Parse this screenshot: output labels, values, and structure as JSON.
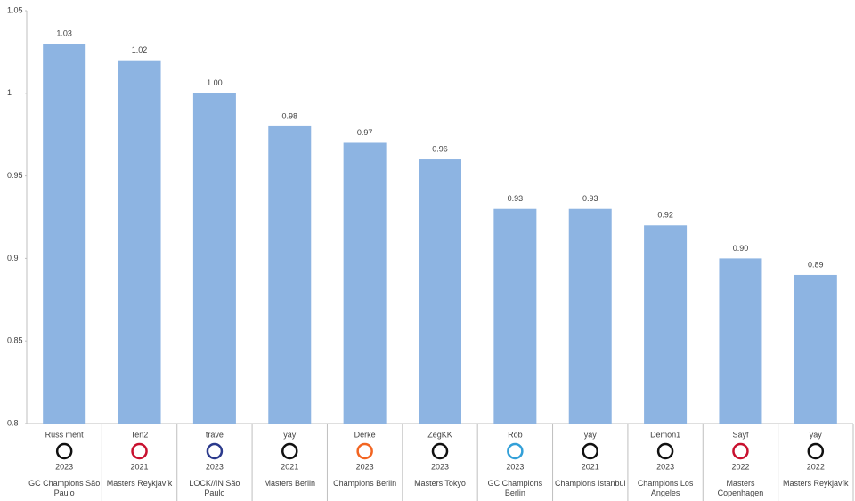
{
  "chart_data": {
    "type": "bar",
    "categories": [
      "Russ ment",
      "Ten2",
      "trave",
      "yay",
      "Derke",
      "ZegKK",
      "Rob",
      "yay",
      "Demon1",
      "Sayf",
      "yay"
    ],
    "years": [
      "2023",
      "2021",
      "2023",
      "2021",
      "2023",
      "2023",
      "2023",
      "2021",
      "2023",
      "2022",
      "2022"
    ],
    "events": [
      "GC Champions São Paulo",
      "Masters Reykjavík",
      "LOCK//IN São Paulo",
      "Masters Berlin",
      "Champions Berlin",
      "Masters Tokyo",
      "GC Champions Berlin",
      "Champions Istanbul",
      "Champions Los Angeles",
      "Masters Copenhagen",
      "Masters Reykjavík"
    ],
    "values": [
      1.03,
      1.02,
      1.0,
      0.98,
      0.97,
      0.96,
      0.93,
      0.93,
      0.92,
      0.9,
      0.89
    ],
    "value_labels": [
      "1.03",
      "1.02",
      "1.00",
      "0.98",
      "0.97",
      "0.96",
      "0.93",
      "0.93",
      "0.92",
      "0.90",
      "0.89"
    ],
    "color": "#8db4e2",
    "ylim": [
      0.8,
      1.05
    ],
    "yticks": [
      0.8,
      0.85,
      0.9,
      0.95,
      1,
      1.05
    ]
  }
}
